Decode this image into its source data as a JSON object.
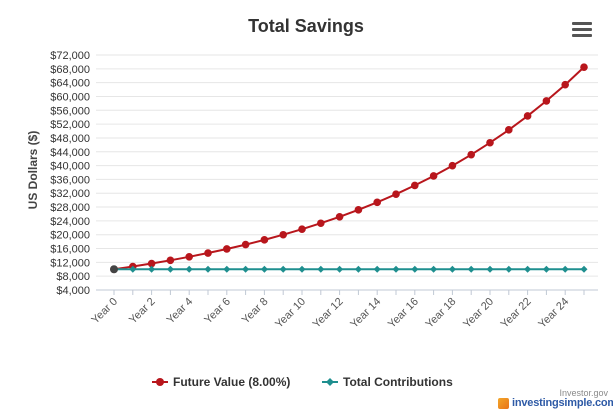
{
  "chart_data": {
    "type": "line",
    "title": "Total Savings",
    "ylabel": "US Dollars ($)",
    "xlabel": "",
    "x": [
      0,
      1,
      2,
      3,
      4,
      5,
      6,
      7,
      8,
      9,
      10,
      11,
      12,
      13,
      14,
      15,
      16,
      17,
      18,
      19,
      20,
      21,
      22,
      23,
      24,
      25
    ],
    "xtick_labels": [
      "Year 0",
      "Year 2",
      "Year 4",
      "Year 6",
      "Year 8",
      "Year 10",
      "Year 12",
      "Year 14",
      "Year 16",
      "Year 18",
      "Year 20",
      "Year 22",
      "Year 24"
    ],
    "ytick_labels": [
      "$4,000",
      "$8,000",
      "$12,000",
      "$16,000",
      "$20,000",
      "$24,000",
      "$28,000",
      "$32,000",
      "$36,000",
      "$40,000",
      "$44,000",
      "$48,000",
      "$52,000",
      "$56,000",
      "$60,000",
      "$64,000",
      "$68,000",
      "$72,000"
    ],
    "ylim": [
      4000,
      72000
    ],
    "grid": true,
    "legend_position": "bottom",
    "series": [
      {
        "name": "Future Value (8.00%)",
        "color": "#b8161c",
        "marker": "circle",
        "values": [
          10000,
          10800,
          11664,
          12597,
          13605,
          14693,
          15869,
          17138,
          18509,
          19990,
          21589,
          23316,
          25182,
          27196,
          29372,
          31722,
          34259,
          37000,
          39960,
          43157,
          46610,
          50338,
          54365,
          58715,
          63412,
          68485
        ]
      },
      {
        "name": "Total Contributions",
        "color": "#1f8f8f",
        "marker": "diamond",
        "values": [
          10000,
          10000,
          10000,
          10000,
          10000,
          10000,
          10000,
          10000,
          10000,
          10000,
          10000,
          10000,
          10000,
          10000,
          10000,
          10000,
          10000,
          10000,
          10000,
          10000,
          10000,
          10000,
          10000,
          10000,
          10000,
          10000
        ]
      }
    ]
  },
  "menu_icon": "hamburger-menu-icon",
  "watermark": {
    "top": "Investor.gov",
    "main": "investingsimple.com"
  }
}
